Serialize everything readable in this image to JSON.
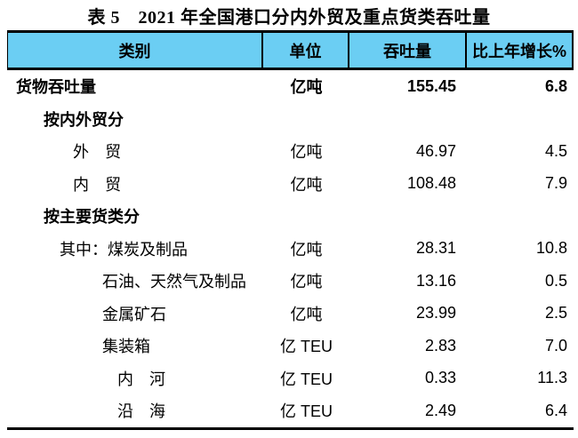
{
  "title": "表 5　2021 年全国港口分内外贸及重点货类吞吐量",
  "table": {
    "columns": {
      "category": "类别",
      "unit": "单位",
      "throughput": "吞吐量",
      "growth": "比上年增长%"
    },
    "colors": {
      "header_bg": "#6BCEF3",
      "border": "#000000"
    },
    "rows": [
      {
        "label": "货物吞吐量",
        "unit": "亿吨",
        "value": "155.45",
        "growth": "6.8",
        "bold": true,
        "indent": 0
      },
      {
        "label": "按内外贸分",
        "unit": "",
        "value": "",
        "growth": "",
        "bold": true,
        "indent": 1
      },
      {
        "label": "外　贸",
        "unit": "亿吨",
        "value": "46.97",
        "growth": "4.5",
        "bold": false,
        "indent": 2
      },
      {
        "label": "内　贸",
        "unit": "亿吨",
        "value": "108.48",
        "growth": "7.9",
        "bold": false,
        "indent": 2
      },
      {
        "label": "按主要货类分",
        "unit": "",
        "value": "",
        "growth": "",
        "bold": true,
        "indent": 1
      },
      {
        "label": "其中：煤炭及制品",
        "unit": "亿吨",
        "value": "28.31",
        "growth": "10.8",
        "bold": false,
        "indent": 3
      },
      {
        "label": "石油、天然气及制品",
        "unit": "亿吨",
        "value": "13.16",
        "growth": "0.5",
        "bold": false,
        "indent": 4
      },
      {
        "label": "金属矿石",
        "unit": "亿吨",
        "value": "23.99",
        "growth": "2.5",
        "bold": false,
        "indent": 4
      },
      {
        "label": "集装箱",
        "unit": "亿 TEU",
        "value": "2.83",
        "growth": "7.0",
        "bold": false,
        "indent": 4
      },
      {
        "label": "内　河",
        "unit": "亿 TEU",
        "value": "0.33",
        "growth": "11.3",
        "bold": false,
        "indent": 5
      },
      {
        "label": "沿　海",
        "unit": "亿 TEU",
        "value": "2.49",
        "growth": "6.4",
        "bold": false,
        "indent": 5
      }
    ]
  }
}
